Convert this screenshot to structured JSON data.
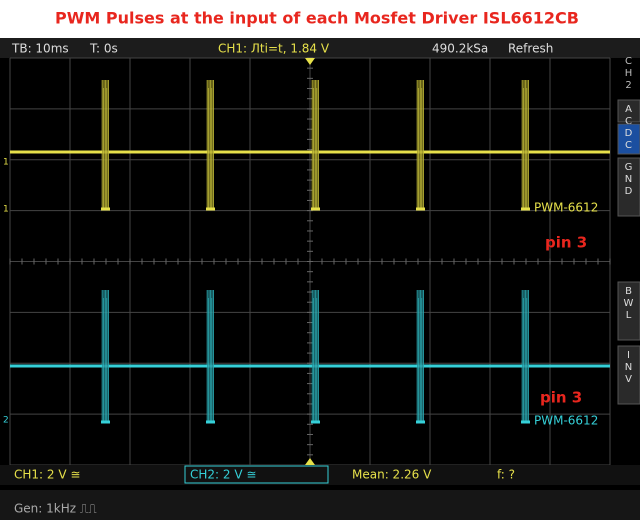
{
  "title": "PWM Pulses at the input of each Mosfet Driver  ISL6612CB",
  "status_bar": {
    "timebase": "TB: 10ms",
    "trigger_time": "T: 0s",
    "trigger": "CH1: Лti=t, 1.84 V",
    "sample_rate": "490.2kSa",
    "mode": "Refresh"
  },
  "side_panel": {
    "channel": "CH2",
    "buttons": [
      "AC",
      "DC",
      "GND",
      "BWL",
      "INV"
    ]
  },
  "traces": [
    {
      "marker": "1",
      "label": "PWM-6612",
      "note": "pin 3"
    },
    {
      "marker": "2",
      "label": "PWM-6612",
      "note": "pin 3"
    }
  ],
  "bottom_bar": {
    "ch1": "CH1: 2 V ≅",
    "ch2": "CH2: 2 V ≅",
    "mean": "Mean: 2.26 V",
    "frequency": "f: ?"
  },
  "generator": "Gen: 1kHz ⎍⎍"
}
